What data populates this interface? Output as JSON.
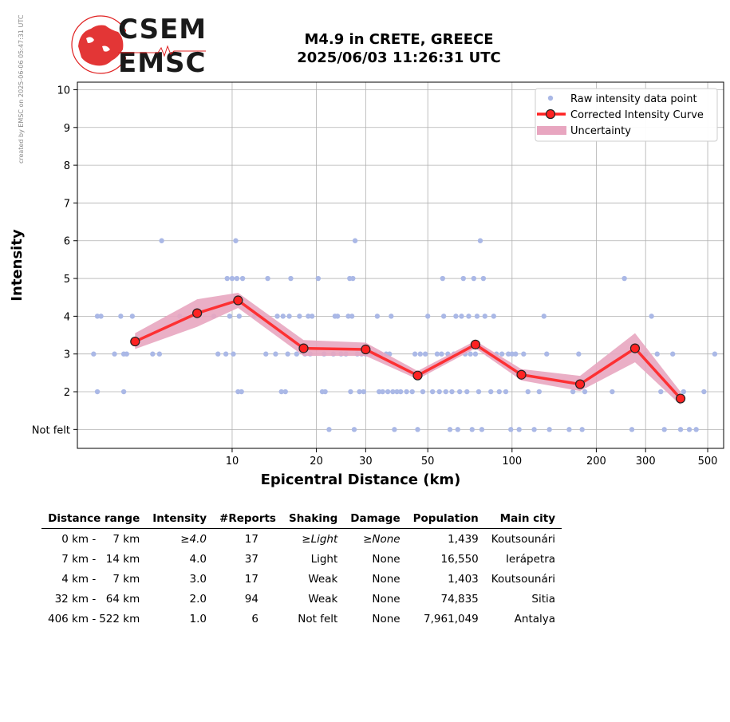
{
  "watermark": "created by EMSC on 2025-06-06 05:47:31 UTC",
  "logo": {
    "line1": "CSEM",
    "line2": "EMSC",
    "color": "#e02020"
  },
  "title": {
    "line1": "M4.9 in CRETE, GREECE",
    "line2": "2025/06/03 11:26:31 UTC"
  },
  "chart_data": {
    "type": "scatter",
    "xlabel": "Epicentral Distance (km)",
    "ylabel": "Intensity",
    "x_scale": "log",
    "xlim": [
      2.8,
      570
    ],
    "ylim": [
      0.5,
      10.2
    ],
    "x_ticks": [
      10,
      20,
      30,
      50,
      100,
      200,
      300,
      500
    ],
    "y_ticks": [
      {
        "v": 1,
        "label": "Not felt"
      },
      {
        "v": 2,
        "label": "2"
      },
      {
        "v": 3,
        "label": "3"
      },
      {
        "v": 4,
        "label": "4"
      },
      {
        "v": 5,
        "label": "5"
      },
      {
        "v": 6,
        "label": "6"
      },
      {
        "v": 7,
        "label": "7"
      },
      {
        "v": 8,
        "label": "8"
      },
      {
        "v": 9,
        "label": "9"
      },
      {
        "v": 10,
        "label": "10"
      }
    ],
    "grid": true,
    "legend_position": "top-right",
    "colors": {
      "raw": "#aab8e6",
      "curve": "#ff2222",
      "band": "#e8a6c0"
    },
    "legend": [
      "Raw intensity data point",
      "Corrected Intensity Curve",
      "Uncertainty"
    ],
    "raw_points": [
      [
        3.2,
        3
      ],
      [
        3.3,
        2
      ],
      [
        3.3,
        4
      ],
      [
        3.4,
        4
      ],
      [
        3.8,
        3
      ],
      [
        4.0,
        4
      ],
      [
        4.1,
        2
      ],
      [
        4.1,
        3
      ],
      [
        4.2,
        3
      ],
      [
        4.4,
        4
      ],
      [
        5.2,
        3
      ],
      [
        5.5,
        3
      ],
      [
        5.6,
        6
      ],
      [
        6.5,
        4
      ],
      [
        7.5,
        4
      ],
      [
        8.6,
        4
      ],
      [
        8.9,
        3
      ],
      [
        9.5,
        3
      ],
      [
        9.6,
        5
      ],
      [
        9.8,
        4
      ],
      [
        10.0,
        5
      ],
      [
        10.1,
        3
      ],
      [
        10.3,
        6
      ],
      [
        10.4,
        5
      ],
      [
        10.5,
        2
      ],
      [
        10.6,
        4
      ],
      [
        10.8,
        2
      ],
      [
        10.9,
        5
      ],
      [
        12.0,
        4
      ],
      [
        13.2,
        3
      ],
      [
        13.4,
        5
      ],
      [
        14.3,
        3
      ],
      [
        14.5,
        4
      ],
      [
        15.0,
        2
      ],
      [
        15.2,
        4
      ],
      [
        15.5,
        2
      ],
      [
        15.8,
        3
      ],
      [
        16.0,
        4
      ],
      [
        16.2,
        5
      ],
      [
        17.0,
        3
      ],
      [
        17.4,
        4
      ],
      [
        18.2,
        3
      ],
      [
        18.7,
        4
      ],
      [
        19.0,
        3
      ],
      [
        19.3,
        4
      ],
      [
        20.3,
        5
      ],
      [
        21.0,
        2
      ],
      [
        21.3,
        3
      ],
      [
        21.5,
        2
      ],
      [
        22.2,
        1
      ],
      [
        23.0,
        3
      ],
      [
        23.3,
        4
      ],
      [
        23.8,
        4
      ],
      [
        24.5,
        3
      ],
      [
        25.5,
        3
      ],
      [
        26.0,
        4
      ],
      [
        26.3,
        5
      ],
      [
        26.5,
        2
      ],
      [
        26.8,
        4
      ],
      [
        27.0,
        5
      ],
      [
        27.3,
        1
      ],
      [
        27.5,
        6
      ],
      [
        28.0,
        3
      ],
      [
        28.5,
        2
      ],
      [
        29.0,
        3
      ],
      [
        29.5,
        2
      ],
      [
        30.0,
        3
      ],
      [
        31.5,
        3
      ],
      [
        32.5,
        3
      ],
      [
        33.0,
        4
      ],
      [
        33.5,
        2
      ],
      [
        34.0,
        3
      ],
      [
        34.5,
        2
      ],
      [
        35.5,
        3
      ],
      [
        36.0,
        2
      ],
      [
        36.5,
        3
      ],
      [
        37.0,
        4
      ],
      [
        37.5,
        2
      ],
      [
        38.0,
        1
      ],
      [
        38.8,
        2
      ],
      [
        40.0,
        2
      ],
      [
        42.0,
        2
      ],
      [
        44.0,
        2
      ],
      [
        45.0,
        3
      ],
      [
        46.0,
        1
      ],
      [
        47.0,
        3
      ],
      [
        48.0,
        2
      ],
      [
        49.0,
        3
      ],
      [
        50.0,
        4
      ],
      [
        52.0,
        2
      ],
      [
        54.0,
        3
      ],
      [
        55.0,
        2
      ],
      [
        56.0,
        3
      ],
      [
        56.5,
        5
      ],
      [
        57.0,
        4
      ],
      [
        58.0,
        2
      ],
      [
        59.0,
        3
      ],
      [
        60.0,
        1
      ],
      [
        61.0,
        2
      ],
      [
        62.0,
        3
      ],
      [
        63.0,
        4
      ],
      [
        64.0,
        1
      ],
      [
        65.0,
        2
      ],
      [
        66.0,
        4
      ],
      [
        67.0,
        5
      ],
      [
        68.0,
        3
      ],
      [
        69.0,
        2
      ],
      [
        70.0,
        4
      ],
      [
        71.0,
        3
      ],
      [
        72.0,
        1
      ],
      [
        73.0,
        5
      ],
      [
        74.0,
        3
      ],
      [
        75.0,
        4
      ],
      [
        76.0,
        2
      ],
      [
        77.0,
        6
      ],
      [
        78.0,
        1
      ],
      [
        79.0,
        5
      ],
      [
        80.0,
        4
      ],
      [
        82.0,
        3
      ],
      [
        84.0,
        2
      ],
      [
        86.0,
        4
      ],
      [
        88.0,
        3
      ],
      [
        90.0,
        2
      ],
      [
        92.0,
        3
      ],
      [
        95.0,
        2
      ],
      [
        97.0,
        3
      ],
      [
        99.0,
        1
      ],
      [
        100.0,
        3
      ],
      [
        103.0,
        3
      ],
      [
        106.0,
        1
      ],
      [
        110.0,
        3
      ],
      [
        114.0,
        2
      ],
      [
        120.0,
        1
      ],
      [
        125.0,
        2
      ],
      [
        130.0,
        4
      ],
      [
        133.0,
        3
      ],
      [
        136.0,
        1
      ],
      [
        160.0,
        1
      ],
      [
        165.0,
        2
      ],
      [
        173.0,
        3
      ],
      [
        178.0,
        1
      ],
      [
        182.0,
        2
      ],
      [
        228.0,
        2
      ],
      [
        252.0,
        5
      ],
      [
        268.0,
        1
      ],
      [
        300.0,
        3
      ],
      [
        315.0,
        4
      ],
      [
        330.0,
        3
      ],
      [
        340.0,
        2
      ],
      [
        350.0,
        1
      ],
      [
        375.0,
        3
      ],
      [
        380.0,
        2
      ],
      [
        400.0,
        1
      ],
      [
        410.0,
        2
      ],
      [
        430.0,
        1
      ],
      [
        455.0,
        1
      ],
      [
        485.0,
        2
      ],
      [
        530.0,
        3
      ]
    ],
    "curve": [
      {
        "x": 4.5,
        "y": 3.33,
        "lo": 3.13,
        "hi": 3.55
      },
      {
        "x": 7.5,
        "y": 4.08,
        "lo": 3.72,
        "hi": 4.45
      },
      {
        "x": 10.5,
        "y": 4.42,
        "lo": 4.22,
        "hi": 4.62
      },
      {
        "x": 18.0,
        "y": 3.15,
        "lo": 2.95,
        "hi": 3.37
      },
      {
        "x": 30.0,
        "y": 3.12,
        "lo": 2.95,
        "hi": 3.3
      },
      {
        "x": 46.0,
        "y": 2.43,
        "lo": 2.33,
        "hi": 2.55
      },
      {
        "x": 74.0,
        "y": 3.25,
        "lo": 3.15,
        "hi": 3.35
      },
      {
        "x": 108.0,
        "y": 2.45,
        "lo": 2.3,
        "hi": 2.6
      },
      {
        "x": 175.0,
        "y": 2.2,
        "lo": 2.02,
        "hi": 2.42
      },
      {
        "x": 275.0,
        "y": 3.15,
        "lo": 2.78,
        "hi": 3.55
      },
      {
        "x": 400.0,
        "y": 1.82,
        "lo": 1.65,
        "hi": 2.0
      }
    ]
  },
  "table": {
    "headers": [
      "Distance range",
      "Intensity",
      "#Reports",
      "Shaking",
      "Damage",
      "Population",
      "Main city"
    ],
    "rows": [
      {
        "d1": "0 km -",
        "d2": "7 km",
        "intensity": "≥4.0",
        "reports": "17",
        "shaking": "≥Light",
        "damage": "≥None",
        "population": "1,439",
        "city": "Koutsounári"
      },
      {
        "d1": "7 km -",
        "d2": "14 km",
        "intensity": "4.0",
        "reports": "37",
        "shaking": "Light",
        "damage": "None",
        "population": "16,550",
        "city": "Ierápetra"
      },
      {
        "d1": "4 km -",
        "d2": "7 km",
        "intensity": "3.0",
        "reports": "17",
        "shaking": "Weak",
        "damage": "None",
        "population": "1,403",
        "city": "Koutsounári"
      },
      {
        "d1": "32 km -",
        "d2": "64 km",
        "intensity": "2.0",
        "reports": "94",
        "shaking": "Weak",
        "damage": "None",
        "population": "74,835",
        "city": "Sitia"
      },
      {
        "d1": "406 km -",
        "d2": "522 km",
        "intensity": "1.0",
        "reports": "6",
        "shaking": "Not felt",
        "damage": "None",
        "population": "7,961,049",
        "city": "Antalya"
      }
    ]
  }
}
